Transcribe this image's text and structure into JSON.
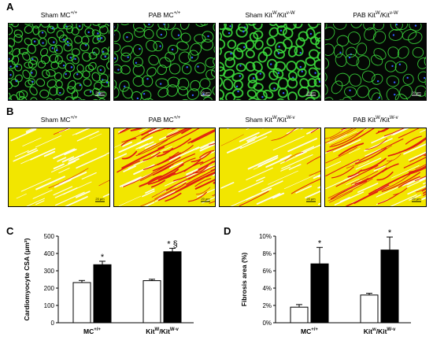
{
  "panels": {
    "A": {
      "letter": "A",
      "labels": [
        {
          "base": "Sham MC",
          "sup": "+/+"
        },
        {
          "base": "PAB MC",
          "sup": "+/+"
        },
        {
          "base": "Sham Kit",
          "sup": "W",
          "mid": "/Kit",
          "sup2": "v-W"
        },
        {
          "base": "PAB Kit",
          "sup": "W",
          "mid": "/Kit",
          "sup2": "v-W"
        }
      ],
      "scale_label": "20 μm"
    },
    "B": {
      "letter": "B",
      "labels": [
        {
          "base": "Sham MC",
          "sup": "+/+"
        },
        {
          "base": "PAB MC",
          "sup": "+/+"
        },
        {
          "base": "Sham Kit",
          "sup": "W",
          "mid": "/Kit",
          "sup2": "W-v"
        },
        {
          "base": "PAB Kit",
          "sup": "W",
          "mid": "/Kit",
          "sup2": "W-v"
        }
      ],
      "scale_label": "20 μm"
    },
    "C": {
      "letter": "C"
    },
    "D": {
      "letter": "D"
    }
  },
  "colors": {
    "membrane_green": "#3cdc3c",
    "nuclei_blue": "#3264ff",
    "picro_yellow": "#f2e600",
    "collagen_red": "#e02010"
  },
  "chart_data": [
    {
      "type": "bar",
      "panel": "C",
      "ylabel": "Cardiomyocyte CSA (μm²)",
      "ylim": [
        0,
        500
      ],
      "yticks": [
        0,
        100,
        200,
        300,
        400,
        500
      ],
      "groups": [
        {
          "label": "MC",
          "sup": "+/+",
          "sham": 232,
          "sham_err": 12,
          "pab": 335,
          "pab_err": 20,
          "marker": "*"
        },
        {
          "label": "Kit",
          "sup": "W",
          "mid": "/Kit",
          "sup2": "W-v",
          "sham": 243,
          "sham_err": 8,
          "pab": 410,
          "pab_err": 20,
          "marker": "* §"
        }
      ]
    },
    {
      "type": "bar",
      "panel": "D",
      "ylabel": "Fibrosis area (%)",
      "ylim": [
        0,
        10
      ],
      "yticks": [
        0,
        2,
        4,
        6,
        8,
        10
      ],
      "tick_suffix": "%",
      "groups": [
        {
          "label": "MC",
          "sup": "+/+",
          "sham": 1.8,
          "sham_err": 0.3,
          "pab": 6.8,
          "pab_err": 1.9,
          "marker": "*"
        },
        {
          "label": "Kit",
          "sup": "w",
          "mid": "/Kit",
          "sup2": "W-v",
          "sham": 3.2,
          "sham_err": 0.2,
          "pab": 8.4,
          "pab_err": 1.5,
          "marker": "*"
        }
      ]
    }
  ]
}
